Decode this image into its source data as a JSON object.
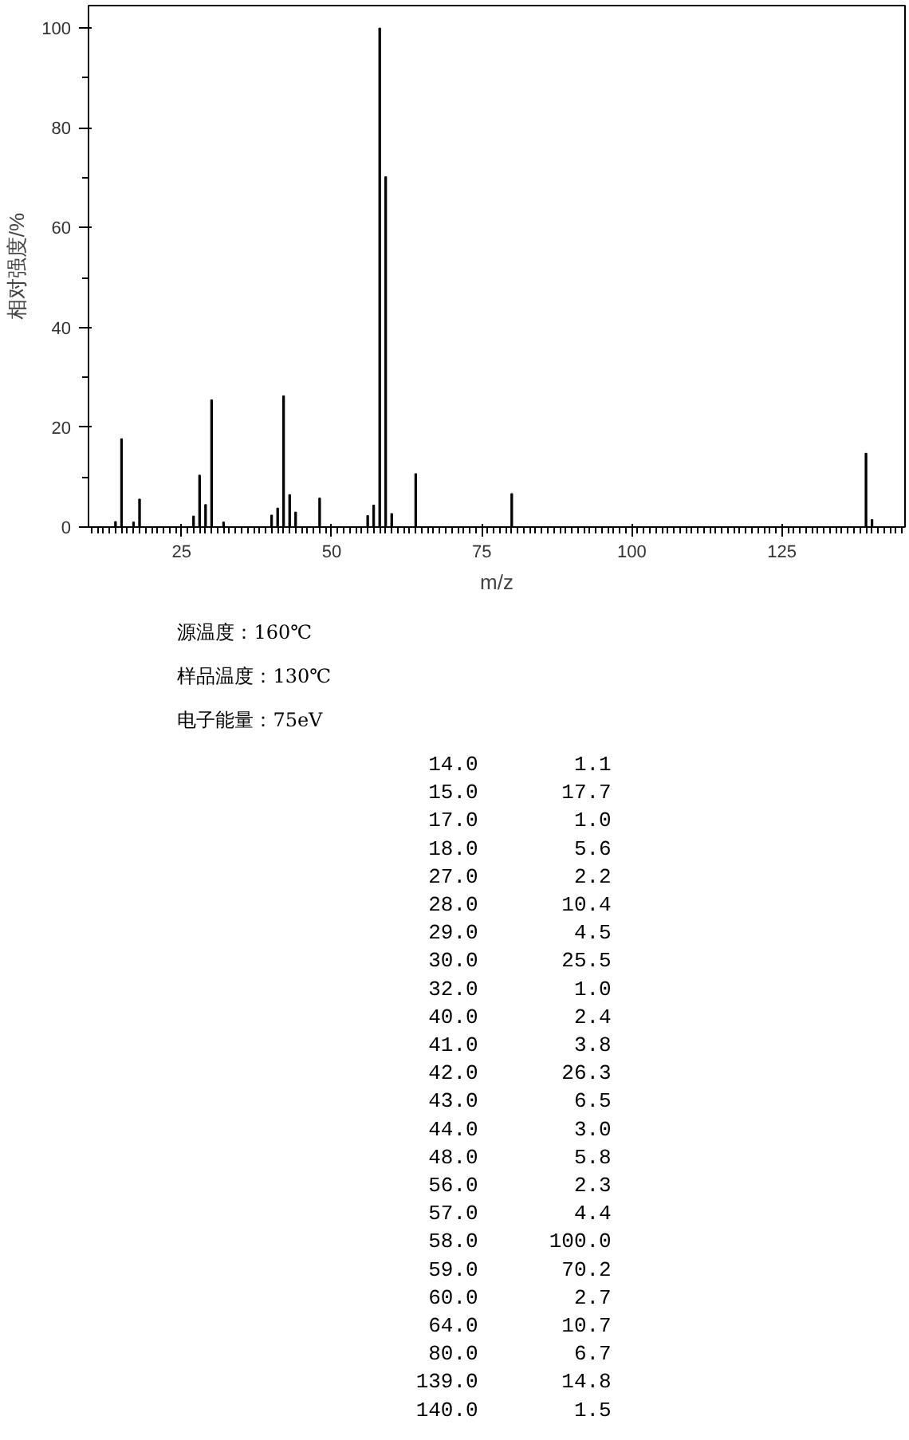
{
  "chart_data": [
    {
      "type": "bar",
      "xlabel": "m/z",
      "ylabel": "相对强度/%",
      "x": [
        14.0,
        15.0,
        17.0,
        18.0,
        27.0,
        28.0,
        29.0,
        30.0,
        32.0,
        40.0,
        41.0,
        42.0,
        43.0,
        44.0,
        48.0,
        56.0,
        57.0,
        58.0,
        59.0,
        60.0,
        64.0,
        80.0,
        139.0,
        140.0
      ],
      "values": [
        1.1,
        17.7,
        1.0,
        5.6,
        2.2,
        10.4,
        4.5,
        25.5,
        1.0,
        2.4,
        3.8,
        26.3,
        6.5,
        3.0,
        5.8,
        2.3,
        4.4,
        100.0,
        70.2,
        2.7,
        10.7,
        6.7,
        14.8,
        1.5
      ],
      "color": "#000000",
      "xlim": [
        9.5,
        145.5
      ],
      "ylim": [
        0,
        104.5
      ],
      "xticks": [
        25,
        50,
        75,
        100,
        125
      ],
      "yticks": [
        0,
        20,
        40,
        60,
        80,
        100
      ],
      "grid": false,
      "legend": false,
      "annotations": [
        "源温度：160℃",
        "样品温度：130℃",
        "电子能量：75eV"
      ]
    },
    {
      "type": "other",
      "annotations": [
        "14.0 1.1",
        "15.0 17.7",
        "17.0 1.0",
        "18.0 5.6",
        "27.0 2.2",
        "28.0 10.4",
        "29.0 4.5",
        "30.0 25.5",
        "32.0 1.0",
        "40.0 2.4",
        "41.0 3.8",
        "42.0 26.3",
        "43.0 6.5",
        "44.0 3.0",
        "48.0 5.8",
        "56.0 2.3",
        "57.0 4.4",
        "58.0 100.0",
        "59.0 70.2",
        "60.0 2.7",
        "64.0 10.7",
        "80.0 6.7",
        "139.0 14.8",
        "140.0 1.5"
      ]
    }
  ]
}
